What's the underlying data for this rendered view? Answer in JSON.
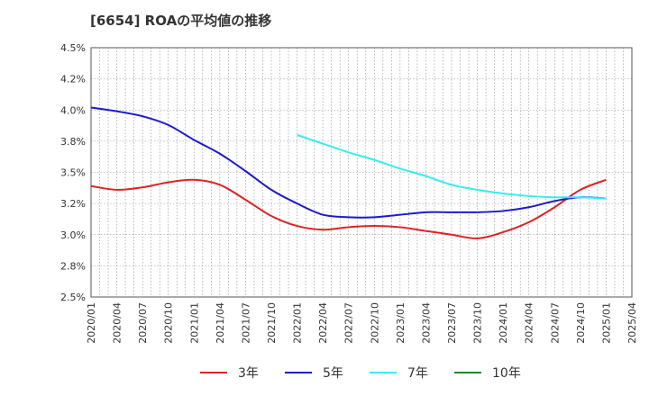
{
  "title": "[6654]  ROAの平均値の推移",
  "chart_data": {
    "type": "line",
    "title": "[6654]  ROAの平均値の推移",
    "xlabel": "",
    "ylabel": "",
    "ylim": [
      2.5,
      4.5
    ],
    "yticks": [
      "4.5%",
      "4.2%",
      "4.0%",
      "3.8%",
      "3.5%",
      "3.2%",
      "3.0%",
      "2.8%",
      "2.5%"
    ],
    "xticks": [
      "2020/01",
      "2020/04",
      "2020/07",
      "2020/10",
      "2021/01",
      "2021/04",
      "2021/07",
      "2021/10",
      "2022/01",
      "2022/04",
      "2022/07",
      "2022/10",
      "2023/01",
      "2023/04",
      "2023/07",
      "2023/10",
      "2024/01",
      "2024/04",
      "2024/07",
      "2024/10",
      "2025/01",
      "2025/04"
    ],
    "grid": true,
    "legend_position": "bottom",
    "series": [
      {
        "name": "3年",
        "color": "#dd2222",
        "points": [
          [
            "2020/01",
            3.39
          ],
          [
            "2020/04",
            3.36
          ],
          [
            "2020/07",
            3.38
          ],
          [
            "2020/10",
            3.42
          ],
          [
            "2021/01",
            3.44
          ],
          [
            "2021/04",
            3.4
          ],
          [
            "2021/07",
            3.28
          ],
          [
            "2021/10",
            3.15
          ],
          [
            "2022/01",
            3.07
          ],
          [
            "2022/04",
            3.04
          ],
          [
            "2022/07",
            3.06
          ],
          [
            "2022/10",
            3.07
          ],
          [
            "2023/01",
            3.06
          ],
          [
            "2023/04",
            3.03
          ],
          [
            "2023/07",
            3.0
          ],
          [
            "2023/10",
            2.97
          ],
          [
            "2024/01",
            3.02
          ],
          [
            "2024/04",
            3.1
          ],
          [
            "2024/07",
            3.22
          ],
          [
            "2024/10",
            3.36
          ],
          [
            "2025/01",
            3.44
          ]
        ]
      },
      {
        "name": "5年",
        "color": "#1a1acc",
        "points": [
          [
            "2020/01",
            4.02
          ],
          [
            "2020/04",
            3.99
          ],
          [
            "2020/07",
            3.95
          ],
          [
            "2020/10",
            3.88
          ],
          [
            "2021/01",
            3.76
          ],
          [
            "2021/04",
            3.65
          ],
          [
            "2021/07",
            3.51
          ],
          [
            "2021/10",
            3.36
          ],
          [
            "2022/01",
            3.25
          ],
          [
            "2022/04",
            3.16
          ],
          [
            "2022/07",
            3.14
          ],
          [
            "2022/10",
            3.14
          ],
          [
            "2023/01",
            3.16
          ],
          [
            "2023/04",
            3.18
          ],
          [
            "2023/07",
            3.18
          ],
          [
            "2023/10",
            3.18
          ],
          [
            "2024/01",
            3.19
          ],
          [
            "2024/04",
            3.22
          ],
          [
            "2024/07",
            3.27
          ],
          [
            "2024/10",
            3.3
          ],
          [
            "2025/01",
            3.29
          ]
        ]
      },
      {
        "name": "7年",
        "color": "#33eeee",
        "points": [
          [
            "2022/01",
            3.8
          ],
          [
            "2022/04",
            3.73
          ],
          [
            "2022/07",
            3.66
          ],
          [
            "2022/10",
            3.6
          ],
          [
            "2023/01",
            3.53
          ],
          [
            "2023/04",
            3.47
          ],
          [
            "2023/07",
            3.4
          ],
          [
            "2023/10",
            3.36
          ],
          [
            "2024/01",
            3.33
          ],
          [
            "2024/04",
            3.31
          ],
          [
            "2024/07",
            3.3
          ],
          [
            "2024/10",
            3.3
          ],
          [
            "2025/01",
            3.29
          ]
        ]
      },
      {
        "name": "10年",
        "color": "#228822",
        "points": []
      }
    ]
  }
}
